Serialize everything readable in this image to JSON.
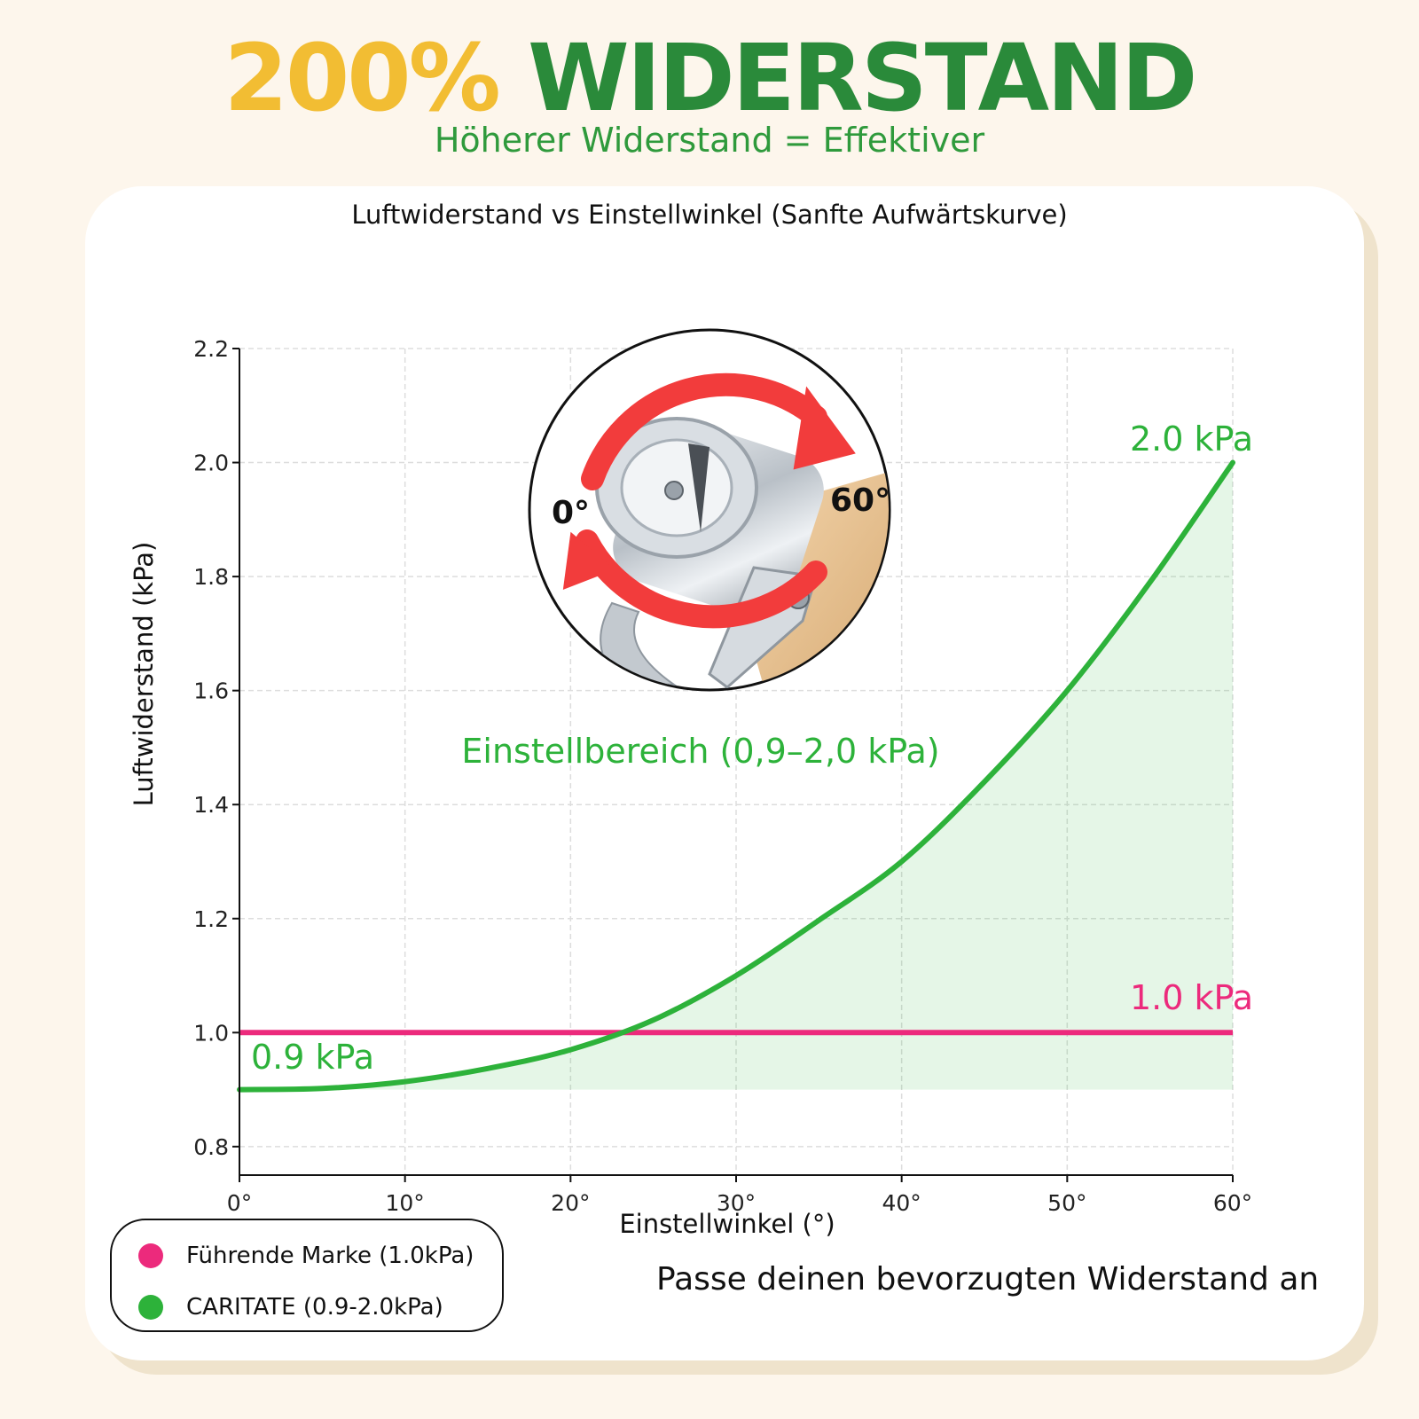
{
  "header": {
    "headline_percent": "200%",
    "headline_word": "WIDERSTAND",
    "subheadline": "Höherer Widerstand = Effektiver"
  },
  "chart_data": {
    "type": "line",
    "title": "Luftwiderstand vs Einstellwinkel (Sanfte Aufwärtskurve)",
    "xlabel": "Einstellwinkel (°)",
    "ylabel": "Luftwiderstand (kPa)",
    "xlim": [
      0,
      60
    ],
    "ylim": [
      0.75,
      2.2
    ],
    "x_ticks": [
      0,
      10,
      20,
      30,
      40,
      50,
      60
    ],
    "x_tick_labels": [
      "0°",
      "10°",
      "20°",
      "30°",
      "40°",
      "50°",
      "60°"
    ],
    "y_ticks": [
      0.8,
      1.0,
      1.2,
      1.4,
      1.6,
      1.8,
      2.0,
      2.2
    ],
    "y_tick_labels": [
      "0.8",
      "1.0",
      "1.2",
      "1.4",
      "1.6",
      "1.8",
      "2.0",
      "2.2"
    ],
    "grid": true,
    "series": [
      {
        "name": "Führende Marke (1.0kPa)",
        "color": "#ec2a7c",
        "x": [
          0,
          10,
          20,
          30,
          40,
          50,
          60
        ],
        "y": [
          1.0,
          1.0,
          1.0,
          1.0,
          1.0,
          1.0,
          1.0
        ]
      },
      {
        "name": "CARITATE (0.9-2.0kPa)",
        "color": "#2db23a",
        "x": [
          0,
          5,
          10,
          15,
          20,
          25,
          30,
          35,
          40,
          45,
          50,
          55,
          60
        ],
        "y": [
          0.9,
          0.902,
          0.914,
          0.937,
          0.97,
          1.022,
          1.1,
          1.197,
          1.3,
          1.44,
          1.6,
          1.79,
          2.0
        ]
      }
    ],
    "shaded_region": {
      "label": "Einstellbereich (0,9–2,0 kPa)",
      "color": "#2db23a",
      "y_base": 0.9
    },
    "annotations": [
      {
        "text": "2.0 kPa",
        "color": "#2db23a"
      },
      {
        "text": "1.0 kPa",
        "color": "#ec2a7c"
      },
      {
        "text": "0.9 kPa",
        "color": "#2db23a"
      }
    ],
    "legend": "bottom-left"
  },
  "inset": {
    "icon": "adjustable-valve-knob-icon",
    "label_start": "0°",
    "label_end": "60°",
    "arrow_color": "#f23c3c"
  },
  "footer": {
    "note": "Passe deinen bevorzugten Widerstand an"
  }
}
